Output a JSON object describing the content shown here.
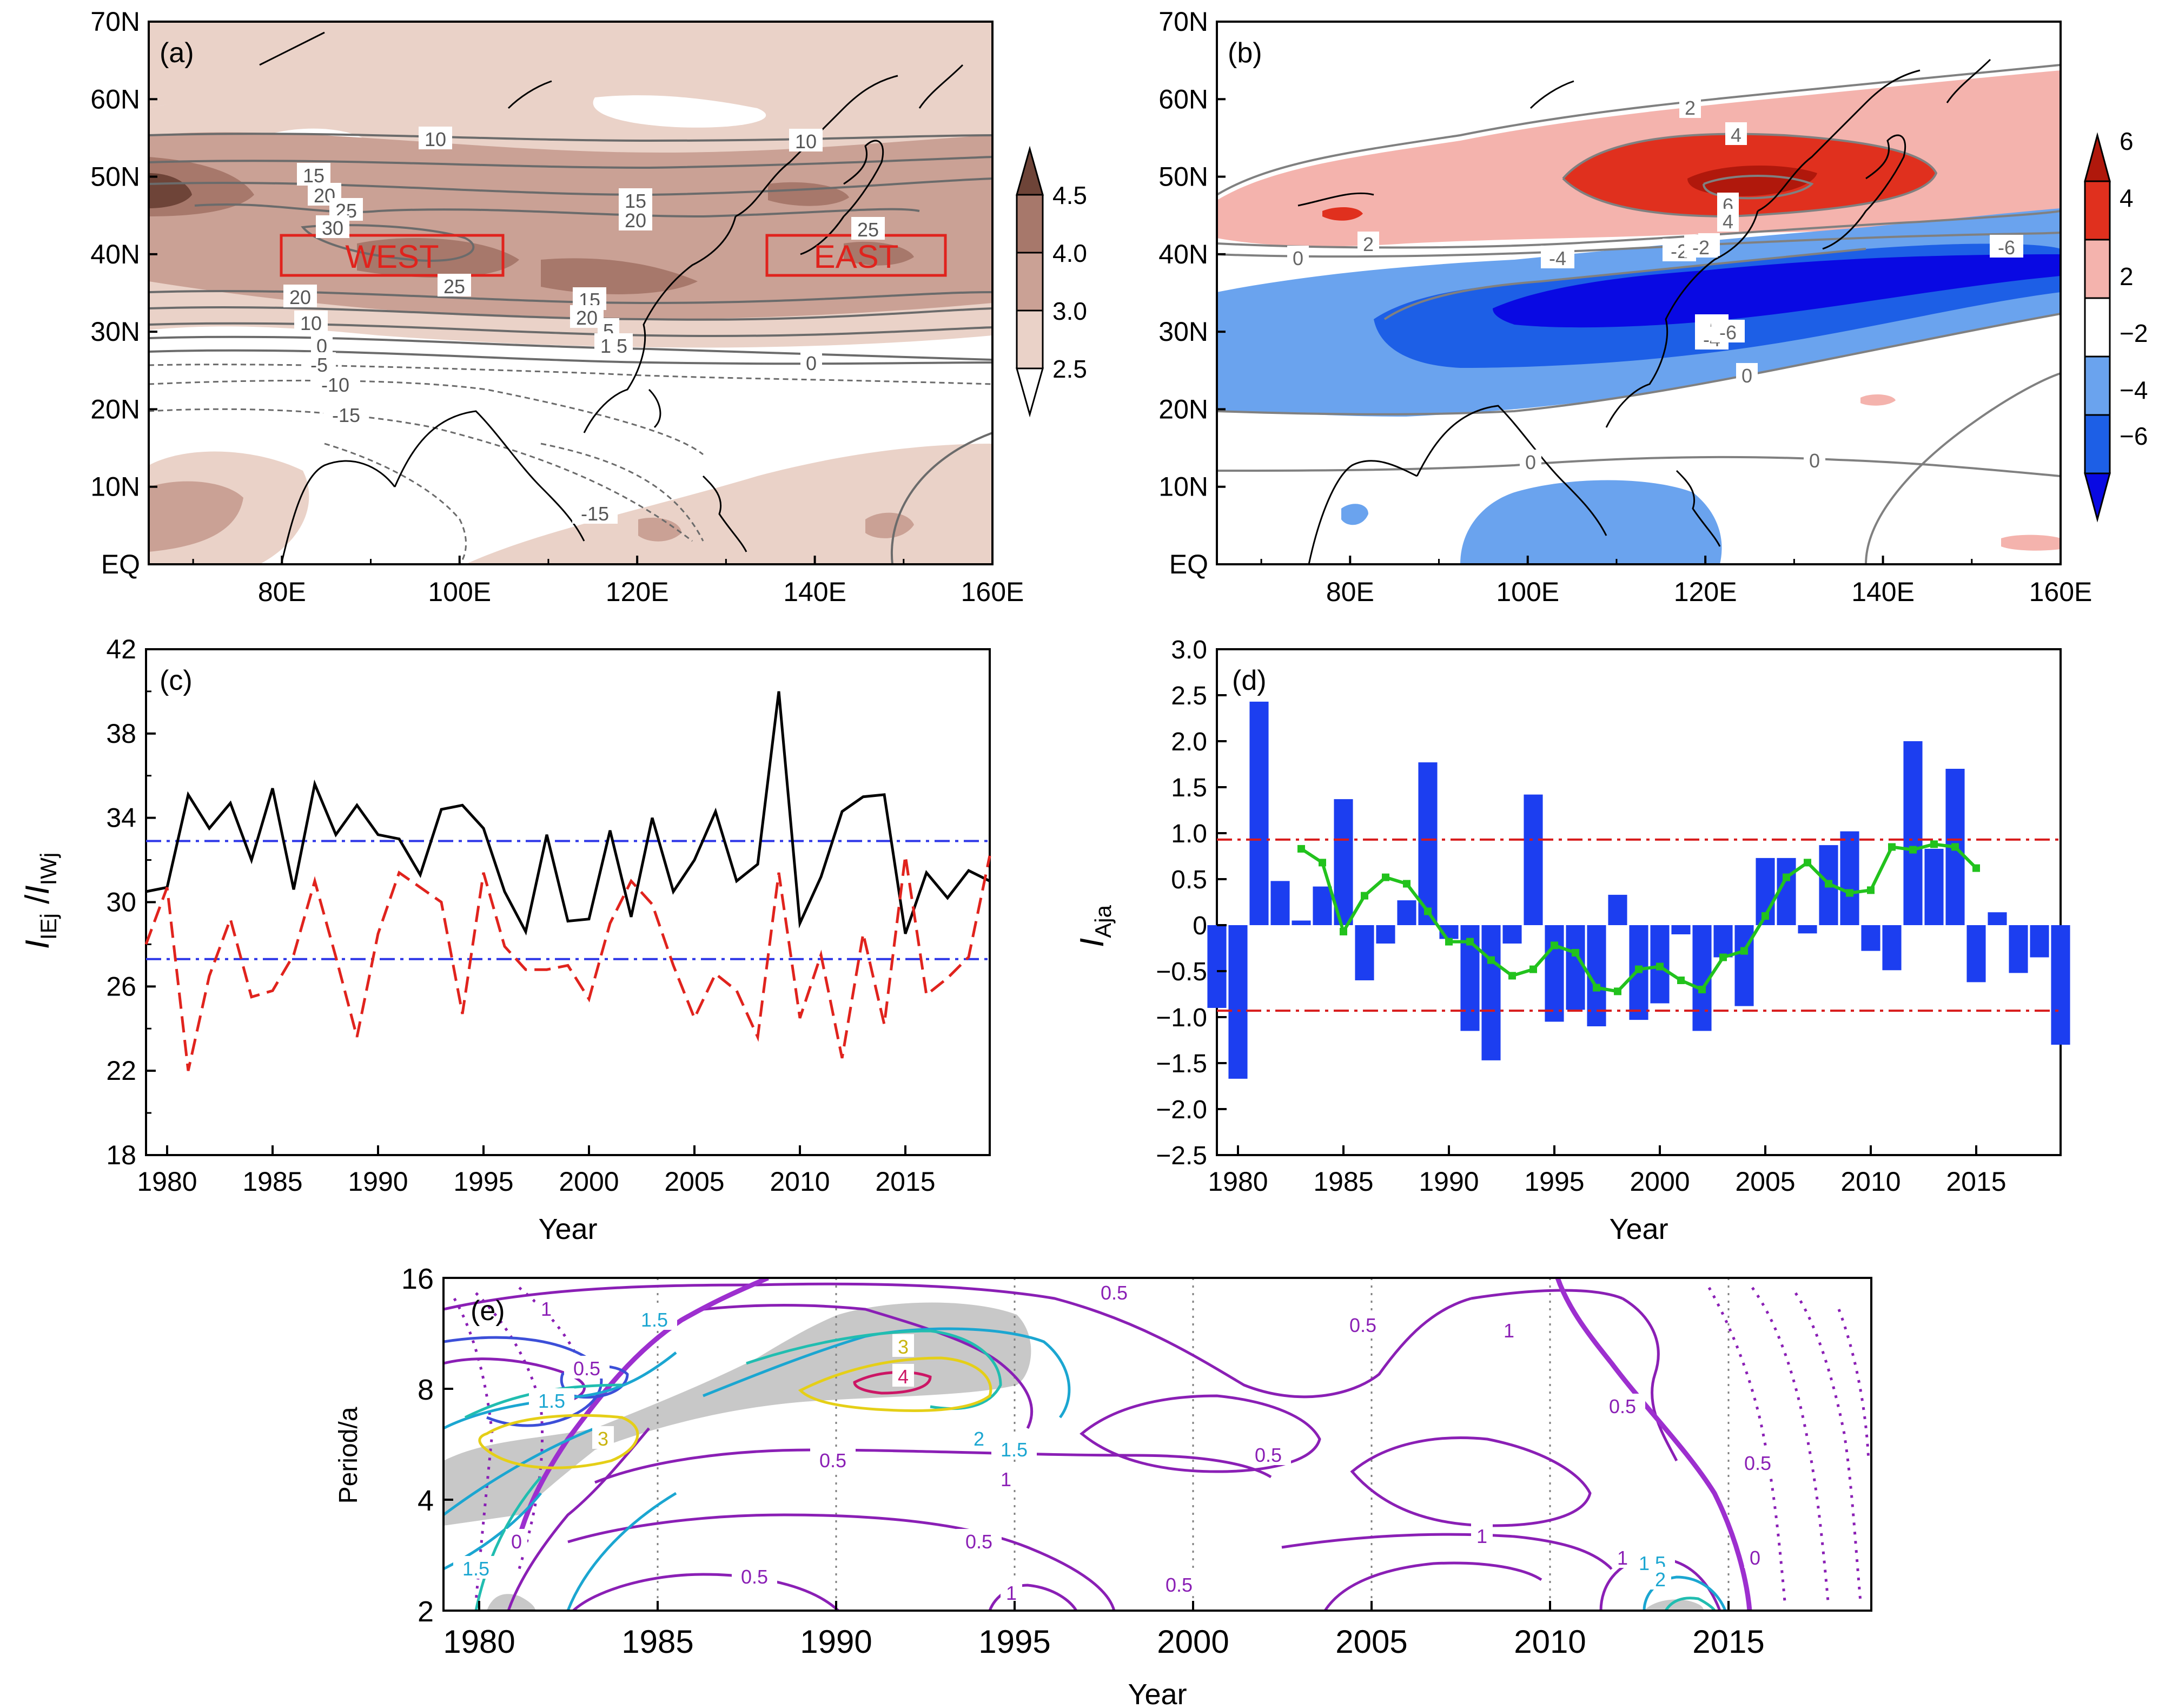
{
  "chart_data": [
    {
      "panel": "(a)",
      "type": "map-contour",
      "x_ticks": [
        "80E",
        "100E",
        "120E",
        "140E",
        "160E"
      ],
      "y_ticks": [
        "70N",
        "60N",
        "50N",
        "40N",
        "30N",
        "20N",
        "10N",
        "EQ"
      ],
      "colorbar_levels": [
        "4.5",
        "4.0",
        "3.0",
        "2.5"
      ],
      "colorbar_colors": [
        "#6e4438",
        "#a7786b",
        "#caa195",
        "#ead2c8",
        "#ffffff"
      ],
      "contour_labels": [
        "10",
        "10",
        "15",
        "15",
        "20",
        "20",
        "25",
        "25",
        "25",
        "30",
        "20",
        "15",
        "10",
        "5",
        "0",
        "-5",
        "-10",
        "-15",
        "20",
        "15",
        "5",
        "0",
        "-15"
      ],
      "boxes": [
        {
          "label": "WEST",
          "lon": [
            80,
            105
          ],
          "lat": [
            37.5,
            42.5
          ]
        },
        {
          "label": "EAST",
          "lon": [
            135,
            155
          ],
          "lat": [
            37.5,
            42.5
          ]
        }
      ],
      "box_color": "#e0231d"
    },
    {
      "panel": "(b)",
      "type": "map-contour",
      "x_ticks": [
        "80E",
        "100E",
        "120E",
        "140E",
        "160E"
      ],
      "y_ticks": [
        "70N",
        "60N",
        "50N",
        "40N",
        "30N",
        "20N",
        "10N",
        "EQ"
      ],
      "colorbar_levels": [
        "6",
        "4",
        "2",
        "−2",
        "−4",
        "−6"
      ],
      "colorbar_colors": [
        "#b0180c",
        "#e0301e",
        "#f4b3ad",
        "#ffffff",
        "#6aa3ee",
        "#1d5fe6",
        "#0909e3"
      ],
      "contour_labels": [
        "2",
        "4",
        "6",
        "4",
        "2",
        "2",
        "0",
        "-2",
        "-2",
        "-4",
        "-6",
        "-6",
        "-4",
        "0",
        "0",
        "0",
        "-6"
      ]
    },
    {
      "panel": "(c)",
      "type": "line",
      "xlabel": "Year",
      "ylabel_main": "I",
      "ylabel_sub1": "IEj",
      "ylabel_sep": " /",
      "ylabel_sub2": "IWj",
      "xlim": [
        1979,
        2019
      ],
      "ylim": [
        18,
        42
      ],
      "x_ticks": [
        1980,
        1985,
        1990,
        1995,
        2000,
        2005,
        2010,
        2015
      ],
      "y_ticks": [
        18,
        22,
        26,
        30,
        34,
        38,
        42
      ],
      "x": [
        1979,
        1980,
        1981,
        1982,
        1983,
        1984,
        1985,
        1986,
        1987,
        1988,
        1989,
        1990,
        1991,
        1992,
        1993,
        1994,
        1995,
        1996,
        1997,
        1998,
        1999,
        2000,
        2001,
        2002,
        2003,
        2004,
        2005,
        2006,
        2007,
        2008,
        2009,
        2010,
        2011,
        2012,
        2013,
        2014,
        2015,
        2016,
        2017,
        2018,
        2019
      ],
      "series": [
        {
          "style": "solid",
          "color": "#000000",
          "values": [
            30.5,
            30.7,
            35.1,
            33.5,
            34.7,
            32.0,
            35.4,
            30.6,
            35.6,
            33.2,
            34.6,
            33.2,
            33.0,
            31.3,
            34.4,
            34.6,
            33.5,
            30.5,
            28.6,
            33.2,
            29.1,
            29.2,
            33.4,
            29.3,
            34.0,
            30.5,
            32.0,
            34.3,
            31.0,
            31.8,
            40.0,
            29.0,
            31.2,
            34.3,
            35.0,
            35.1,
            28.5,
            31.4,
            30.2,
            31.5,
            31.0
          ]
        },
        {
          "style": "dashed",
          "color": "#e0231d",
          "values": [
            28.0,
            30.7,
            22.0,
            26.5,
            29.2,
            25.5,
            25.8,
            27.5,
            31.0,
            27.4,
            23.6,
            28.5,
            31.4,
            30.7,
            30.0,
            24.7,
            31.4,
            27.9,
            26.8,
            26.8,
            27.0,
            25.4,
            29.0,
            31.0,
            29.9,
            27.0,
            24.5,
            26.6,
            25.8,
            23.6,
            31.4,
            24.5,
            27.5,
            22.6,
            28.5,
            24.2,
            32.2,
            25.6,
            26.4,
            27.4,
            32.2
          ]
        }
      ],
      "ref_lines": [
        32.9,
        27.3
      ],
      "ref_color": "#2b35e8"
    },
    {
      "panel": "(d)",
      "type": "bar",
      "xlabel": "Year",
      "ylabel_main": "I",
      "ylabel_sub": "Aja",
      "xlim": [
        1979,
        2019
      ],
      "ylim": [
        -2.5,
        3.0
      ],
      "x_ticks": [
        1980,
        1985,
        1990,
        1995,
        2000,
        2005,
        2010,
        2015
      ],
      "y_ticks": [
        "3.0",
        "2.5",
        "2.0",
        "1.5",
        "1.0",
        "0.5",
        "0",
        "−0.5",
        "−1.0",
        "−1.5",
        "−2.0",
        "−2.5"
      ],
      "x": [
        1979,
        1980,
        1981,
        1982,
        1983,
        1984,
        1985,
        1986,
        1987,
        1988,
        1989,
        1990,
        1991,
        1992,
        1993,
        1994,
        1995,
        1996,
        1997,
        1998,
        1999,
        2000,
        2001,
        2002,
        2003,
        2004,
        2005,
        2006,
        2007,
        2008,
        2009,
        2010,
        2011,
        2012,
        2013,
        2014,
        2015,
        2016,
        2017,
        2018,
        2019
      ],
      "values": [
        -0.9,
        -1.67,
        2.43,
        0.48,
        0.05,
        0.42,
        1.37,
        -0.6,
        -0.2,
        0.27,
        1.77,
        -0.15,
        -1.15,
        -1.47,
        -0.2,
        1.42,
        -1.05,
        -0.92,
        -1.1,
        0.33,
        -1.03,
        -0.85,
        -0.1,
        -1.15,
        -0.35,
        -0.88,
        0.73,
        0.73,
        -0.09,
        0.87,
        1.02,
        -0.28,
        -0.49,
        2.0,
        0.83,
        1.7,
        -0.62,
        0.14,
        -0.52,
        -0.35,
        -1.3
      ],
      "bar_color": "#1c3ef0",
      "smooth_x": [
        1983,
        1984,
        1985,
        1986,
        1987,
        1988,
        1989,
        1990,
        1991,
        1992,
        1993,
        1994,
        1995,
        1996,
        1997,
        1998,
        1999,
        2000,
        2001,
        2002,
        2003,
        2004,
        2005,
        2006,
        2007,
        2008,
        2009,
        2010,
        2011,
        2012,
        2013,
        2014,
        2015
      ],
      "smooth_values": [
        0.83,
        0.68,
        -0.07,
        0.32,
        0.52,
        0.45,
        0.15,
        -0.18,
        -0.18,
        -0.38,
        -0.55,
        -0.48,
        -0.22,
        -0.3,
        -0.68,
        -0.72,
        -0.48,
        -0.45,
        -0.6,
        -0.7,
        -0.35,
        -0.28,
        0.1,
        0.52,
        0.68,
        0.45,
        0.35,
        0.38,
        0.85,
        0.82,
        0.88,
        0.85,
        0.62
      ],
      "smooth_color": "#22c21d",
      "ref_lines": [
        0.93,
        -0.93
      ],
      "ref_color": "#d81b1b"
    },
    {
      "panel": "(e)",
      "type": "wavelet-contour",
      "xlabel": "Year",
      "ylabel": "Period/a",
      "x_ticks": [
        1980,
        1985,
        1990,
        1995,
        2000,
        2005,
        2010,
        2015
      ],
      "y_ticks": [
        "16",
        "8",
        "4",
        "2"
      ],
      "contour_labels": [
        "1",
        "1.5",
        "0.5",
        "1.5",
        "3",
        "4",
        "3",
        "2",
        "1.5",
        "1",
        "0.5",
        "0.5",
        "0.5",
        "0.5",
        "0.5",
        "0.5",
        "1",
        "0.5",
        "1",
        "1",
        "0.5",
        "0.5",
        "1",
        "1.5",
        "2",
        "0",
        "0",
        "1.5"
      ]
    }
  ]
}
